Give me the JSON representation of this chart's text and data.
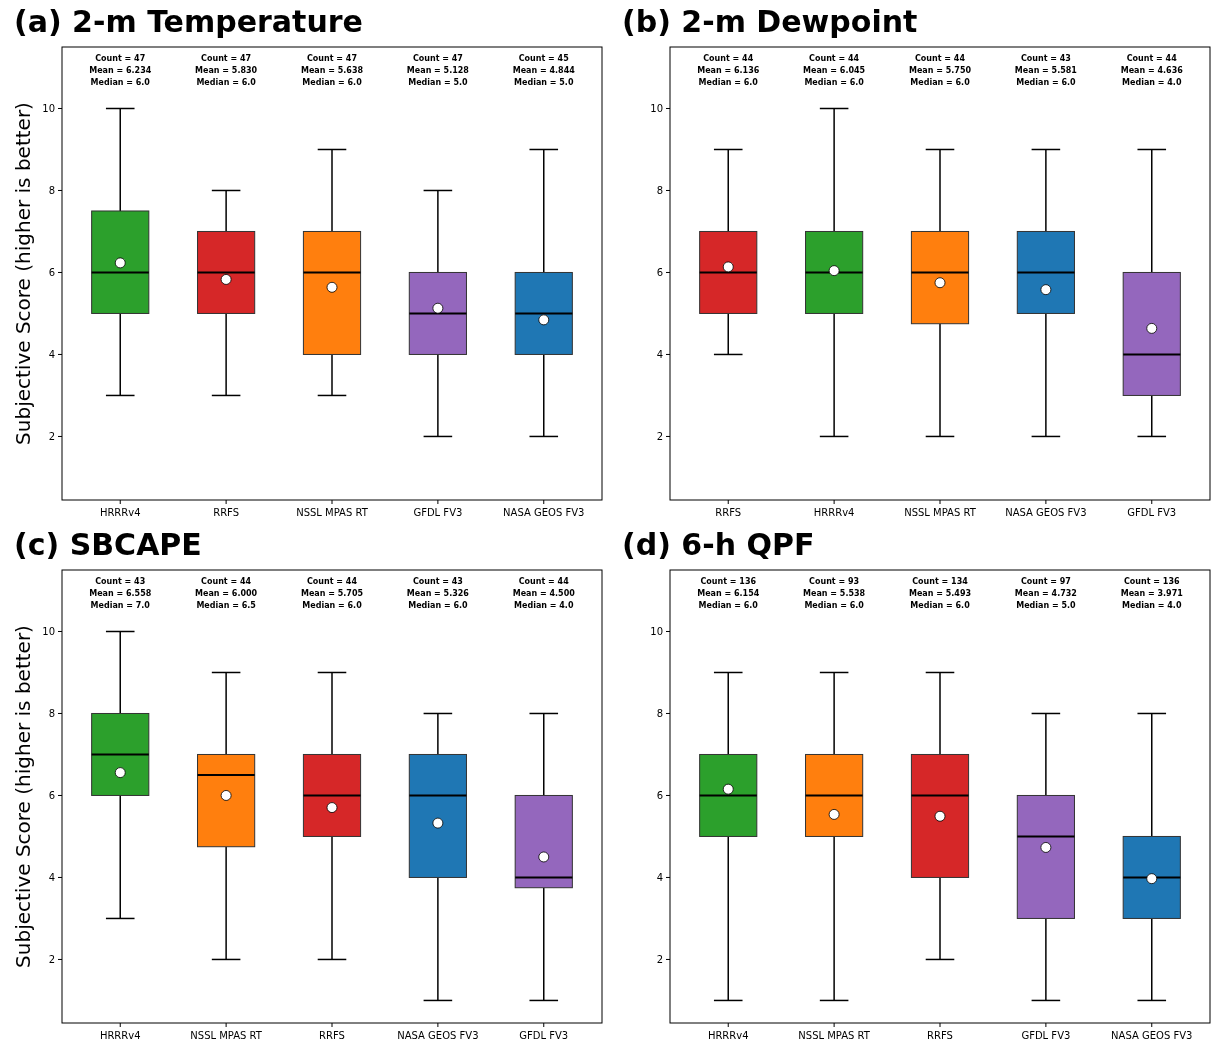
{
  "chart_data": [
    {
      "type": "box",
      "title": "(a) 2-m Temperature",
      "ylabel": "Subjective Score (higher is better)",
      "categories": [
        "HRRRv4",
        "RRFS",
        "NSSL MPAS RT",
        "GFDL FV3",
        "NASA GEOS FV3"
      ],
      "colors": [
        "#2ca02c",
        "#d62728",
        "#ff7f0e",
        "#9467bd",
        "#1f77b4"
      ],
      "ylim": [
        0.45,
        11.5
      ],
      "yticks": [
        2,
        4,
        6,
        8,
        10
      ],
      "boxes": [
        {
          "low": 3,
          "q1": 5,
          "median": 6,
          "q3": 7.5,
          "high": 10,
          "mean": 6.234
        },
        {
          "low": 3,
          "q1": 5,
          "median": 6,
          "q3": 7,
          "high": 8,
          "mean": 5.83
        },
        {
          "low": 3,
          "q1": 4,
          "median": 6,
          "q3": 7,
          "high": 9,
          "mean": 5.638
        },
        {
          "low": 2,
          "q1": 4,
          "median": 5,
          "q3": 6,
          "high": 8,
          "mean": 5.128
        },
        {
          "low": 2,
          "q1": 4,
          "median": 5,
          "q3": 6,
          "high": 9,
          "mean": 4.844
        }
      ],
      "annotations": [
        "Count = 47\nMean = 6.234\nMedian = 6.0",
        "Count = 47\nMean = 5.830\nMedian = 6.0",
        "Count = 47\nMean = 5.638\nMedian = 6.0",
        "Count = 47\nMean = 5.128\nMedian = 5.0",
        "Count = 45\nMean = 4.844\nMedian = 5.0"
      ]
    },
    {
      "type": "box",
      "title": "(b) 2-m Dewpoint",
      "categories": [
        "RRFS",
        "HRRRv4",
        "NSSL MPAS RT",
        "NASA GEOS FV3",
        "GFDL FV3"
      ],
      "colors": [
        "#d62728",
        "#2ca02c",
        "#ff7f0e",
        "#1f77b4",
        "#9467bd"
      ],
      "ylim": [
        0.45,
        11.5
      ],
      "yticks": [
        2,
        4,
        6,
        8,
        10
      ],
      "boxes": [
        {
          "low": 4,
          "q1": 5,
          "median": 6,
          "q3": 7,
          "high": 9,
          "mean": 6.136
        },
        {
          "low": 2,
          "q1": 5,
          "median": 6,
          "q3": 7,
          "high": 10,
          "mean": 6.045
        },
        {
          "low": 2,
          "q1": 4.75,
          "median": 6,
          "q3": 7,
          "high": 9,
          "mean": 5.75
        },
        {
          "low": 2,
          "q1": 5,
          "median": 6,
          "q3": 7,
          "high": 9,
          "mean": 5.581
        },
        {
          "low": 2,
          "q1": 3,
          "median": 4,
          "q3": 6,
          "high": 9,
          "mean": 4.636
        }
      ],
      "annotations": [
        "Count = 44\nMean = 6.136\nMedian = 6.0",
        "Count = 44\nMean = 6.045\nMedian = 6.0",
        "Count = 44\nMean = 5.750\nMedian = 6.0",
        "Count = 43\nMean = 5.581\nMedian = 6.0",
        "Count = 44\nMean = 4.636\nMedian = 4.0"
      ]
    },
    {
      "type": "box",
      "title": "(c) SBCAPE",
      "ylabel": "Subjective Score (higher is better)",
      "categories": [
        "HRRRv4",
        "NSSL MPAS RT",
        "RRFS",
        "NASA GEOS FV3",
        "GFDL FV3"
      ],
      "colors": [
        "#2ca02c",
        "#ff7f0e",
        "#d62728",
        "#1f77b4",
        "#9467bd"
      ],
      "ylim": [
        0.45,
        11.5
      ],
      "yticks": [
        2,
        4,
        6,
        8,
        10
      ],
      "boxes": [
        {
          "low": 3,
          "q1": 6,
          "median": 7,
          "q3": 8,
          "high": 10,
          "mean": 6.558
        },
        {
          "low": 2,
          "q1": 4.75,
          "median": 6.5,
          "q3": 7,
          "high": 9,
          "mean": 6.0
        },
        {
          "low": 2,
          "q1": 5,
          "median": 6,
          "q3": 7,
          "high": 9,
          "mean": 5.705
        },
        {
          "low": 1,
          "q1": 4,
          "median": 6,
          "q3": 7,
          "high": 8,
          "mean": 5.326
        },
        {
          "low": 1,
          "q1": 3.75,
          "median": 4,
          "q3": 6,
          "high": 8,
          "mean": 4.5
        }
      ],
      "annotations": [
        "Count = 43\nMean = 6.558\nMedian = 7.0",
        "Count = 44\nMean = 6.000\nMedian = 6.5",
        "Count = 44\nMean = 5.705\nMedian = 6.0",
        "Count = 43\nMean = 5.326\nMedian = 6.0",
        "Count = 44\nMean = 4.500\nMedian = 4.0"
      ]
    },
    {
      "type": "box",
      "title": "(d) 6-h QPF",
      "categories": [
        "HRRRv4",
        "NSSL MPAS RT",
        "RRFS",
        "GFDL FV3",
        "NASA GEOS FV3"
      ],
      "colors": [
        "#2ca02c",
        "#ff7f0e",
        "#d62728",
        "#9467bd",
        "#1f77b4"
      ],
      "ylim": [
        0.45,
        11.5
      ],
      "yticks": [
        2,
        4,
        6,
        8,
        10
      ],
      "boxes": [
        {
          "low": 1,
          "q1": 5,
          "median": 6,
          "q3": 7,
          "high": 9,
          "mean": 6.154
        },
        {
          "low": 1,
          "q1": 5,
          "median": 6,
          "q3": 7,
          "high": 9,
          "mean": 5.538
        },
        {
          "low": 2,
          "q1": 4,
          "median": 6,
          "q3": 7,
          "high": 9,
          "mean": 5.493
        },
        {
          "low": 1,
          "q1": 3,
          "median": 5,
          "q3": 6,
          "high": 8,
          "mean": 4.732
        },
        {
          "low": 1,
          "q1": 3,
          "median": 4,
          "q3": 5,
          "high": 8,
          "mean": 3.971
        }
      ],
      "annotations": [
        "Count = 136\nMean = 6.154\nMedian = 6.0",
        "Count = 93\nMean = 5.538\nMedian = 6.0",
        "Count = 134\nMean = 5.493\nMedian = 6.0",
        "Count = 97\nMean = 4.732\nMedian = 5.0",
        "Count = 136\nMean = 3.971\nMedian = 4.0"
      ]
    }
  ]
}
